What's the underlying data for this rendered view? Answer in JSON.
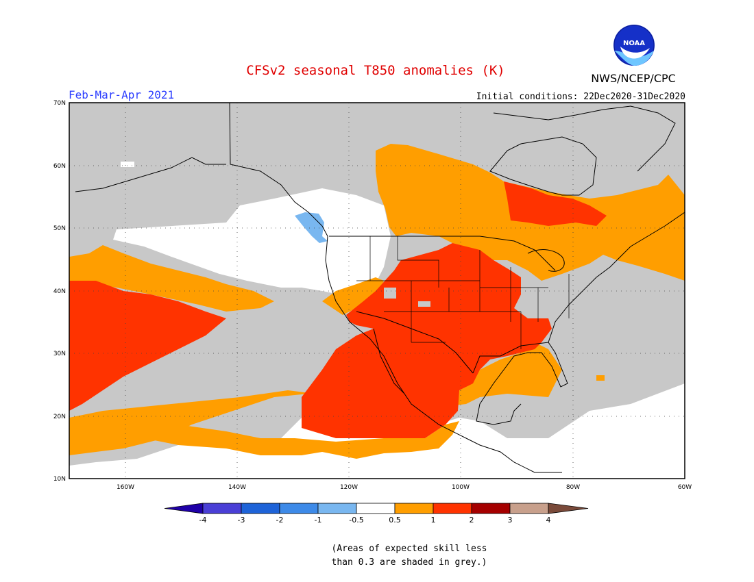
{
  "title": "CFSv2 seasonal T850 anomalies (K)",
  "season": "Feb-Mar-Apr 2021",
  "initial_conditions": "Initial conditions: 22Dec2020-31Dec2020",
  "agency": "NWS/NCEP/CPC",
  "logo_text": "NOAA",
  "note_line1": "(Areas of expected skill less",
  "note_line2": "than 0.3 are shaded in grey.)",
  "lat_ticks": [
    "70N",
    "60N",
    "50N",
    "40N",
    "30N",
    "20N",
    "10N"
  ],
  "lon_ticks": [
    "160W",
    "140W",
    "120W",
    "100W",
    "80W",
    "60W"
  ],
  "colorbar": {
    "labels": [
      "-4",
      "-3",
      "-2",
      "-1",
      "-0.5",
      "0.5",
      "1",
      "2",
      "3",
      "4"
    ],
    "colors": [
      "#1f00a8",
      "#4a3fd6",
      "#1e63d8",
      "#3d8ae8",
      "#79b7f0",
      "#ffffff",
      "#ff9e00",
      "#ff3300",
      "#a50000",
      "#c8a08c",
      "#7a4a3a"
    ],
    "grey": "#c8c8c8"
  },
  "chart_data": {
    "type": "heatmap",
    "title": "CFSv2 seasonal T850 anomalies (K)",
    "period": "Feb-Mar-Apr 2021",
    "lon_range": [
      -170,
      -60
    ],
    "lat_range": [
      10,
      70
    ],
    "color_levels": [
      -4,
      -3,
      -2,
      -1,
      -0.5,
      0.5,
      1,
      2,
      3,
      4
    ],
    "regions": [
      {
        "name": "low-skill",
        "category": "grey"
      },
      {
        "name": "neutral",
        "category": "white"
      },
      {
        "name": "canada-central",
        "category": "0.5-1"
      },
      {
        "name": "eastern-canada",
        "category": "0.5-1"
      },
      {
        "name": "great-lakes-ring",
        "category": "0.5-1"
      },
      {
        "name": "gulf-coast",
        "category": "0.5-1"
      },
      {
        "name": "pacific-north-band",
        "category": "0.5-1"
      },
      {
        "name": "pacific-south-band",
        "category": "0.5-1"
      },
      {
        "name": "central-us",
        "category": "1-2"
      },
      {
        "name": "mexico-pacific",
        "category": "1-2"
      },
      {
        "name": "central-pacific",
        "category": "1-2"
      },
      {
        "name": "hudson-bay",
        "category": "1-2"
      },
      {
        "name": "bc-coast",
        "category": "-1--0.5"
      }
    ]
  }
}
